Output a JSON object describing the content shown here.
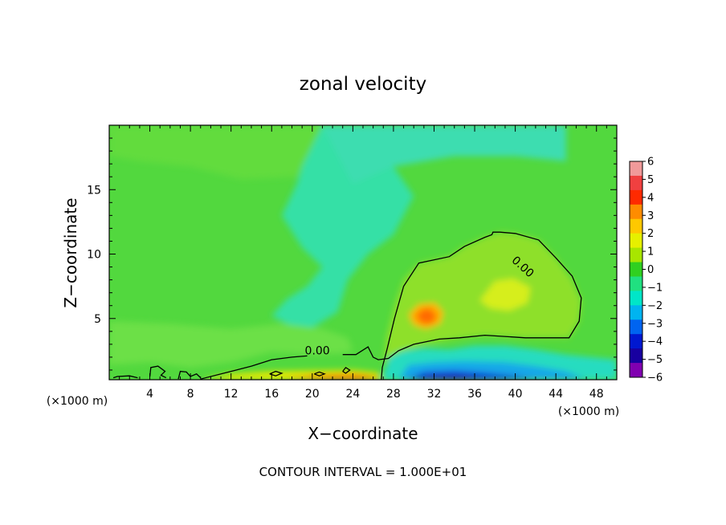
{
  "chart_data": {
    "type": "heatmap",
    "title": "zonal velocity",
    "xlabel": "X−coordinate",
    "ylabel": "Z−coordinate",
    "x_unit_left": "(×1000 m)",
    "x_unit_right": "(×1000 m)",
    "footer": "CONTOUR INTERVAL = 1.000E+01",
    "xlim": [
      0,
      50
    ],
    "ylim": [
      0.25,
      20
    ],
    "x_ticks": [
      4,
      8,
      12,
      16,
      20,
      24,
      28,
      32,
      36,
      40,
      44,
      48
    ],
    "y_ticks": [
      5,
      10,
      15
    ],
    "colorbar": {
      "levels": [
        6,
        5,
        4,
        3,
        2,
        1,
        0,
        -1,
        -2,
        -3,
        -4,
        -5,
        -6
      ],
      "colors": [
        "#f09a9a",
        "#f04040",
        "#ff2a00",
        "#ff8c00",
        "#ffc800",
        "#e6f000",
        "#a8e600",
        "#30d020",
        "#20e080",
        "#00e6c8",
        "#00b4f0",
        "#0064f0",
        "#0018d0",
        "#1800a0",
        "#8000b0"
      ]
    },
    "contour_labels": [
      {
        "text": "0.00",
        "x": 40.5,
        "y": 8.8,
        "rotate": 42
      },
      {
        "text": "0.00",
        "x": 20.5,
        "y": 2.2,
        "rotate": 0
      }
    ],
    "contour_value": "0.00",
    "background_color": "#52d83e",
    "regions": [
      {
        "name": "upper-cyan-band",
        "color": "#3cddb0",
        "points": [
          [
            21,
            20
          ],
          [
            45,
            20
          ],
          [
            45,
            17.2
          ],
          [
            40,
            17.6
          ],
          [
            34,
            17.6
          ],
          [
            28,
            16.8
          ],
          [
            24,
            15.4
          ],
          [
            22,
            16.5
          ]
        ]
      },
      {
        "name": "cyan-plume",
        "color": "#34e0a6",
        "points": [
          [
            21,
            20
          ],
          [
            24,
            15.4
          ],
          [
            28,
            16.8
          ],
          [
            30,
            14.5
          ],
          [
            28,
            11.5
          ],
          [
            25.5,
            10
          ],
          [
            23.5,
            8
          ],
          [
            22.5,
            5.5
          ],
          [
            20,
            4.3
          ],
          [
            18,
            4.4
          ],
          [
            16,
            5.2
          ],
          [
            17.5,
            6.5
          ],
          [
            19.5,
            7.5
          ],
          [
            21,
            9
          ],
          [
            19,
            10.5
          ],
          [
            17,
            13
          ],
          [
            18.5,
            15.5
          ],
          [
            19.5,
            18
          ]
        ]
      },
      {
        "name": "upper-light-band",
        "color": "#62dc3c",
        "points": [
          [
            0,
            20
          ],
          [
            21,
            20
          ],
          [
            18.5,
            16
          ],
          [
            13,
            15.8
          ],
          [
            8,
            16.8
          ],
          [
            3,
            17.2
          ],
          [
            0,
            17.6
          ]
        ]
      },
      {
        "name": "lower-light-band",
        "color": "#6ce046",
        "points": [
          [
            0,
            4.8
          ],
          [
            0,
            1.4
          ],
          [
            4,
            1.6
          ],
          [
            8,
            1.2
          ],
          [
            12,
            1.6
          ],
          [
            16,
            2.4
          ],
          [
            20,
            2.2
          ],
          [
            23,
            2.3
          ],
          [
            24,
            2.5
          ],
          [
            23.5,
            3.5
          ],
          [
            21,
            4.2
          ],
          [
            17,
            4.6
          ],
          [
            12,
            4.2
          ],
          [
            6,
            4.6
          ]
        ]
      },
      {
        "name": "positive-region",
        "color": "#8ee02c",
        "points": [
          [
            27,
            1.4
          ],
          [
            27.3,
            3.5
          ],
          [
            28.1,
            6
          ],
          [
            29,
            8
          ],
          [
            30.5,
            9.3
          ],
          [
            33.5,
            9.8
          ],
          [
            35,
            10.6
          ],
          [
            37,
            11.3
          ],
          [
            38.5,
            11.7
          ],
          [
            40,
            11.6
          ],
          [
            42.3,
            11.1
          ],
          [
            44,
            9.7
          ],
          [
            45.6,
            8
          ],
          [
            46.5,
            6.4
          ],
          [
            46.3,
            4.8
          ],
          [
            45.3,
            3.5
          ],
          [
            44,
            3.5
          ],
          [
            41,
            3.5
          ],
          [
            37,
            3.7
          ],
          [
            34,
            3.4
          ],
          [
            31,
            3.0
          ],
          [
            28.5,
            2.4
          ],
          [
            27.6,
            2.0
          ]
        ]
      },
      {
        "name": "yellow-core",
        "color": "#d6ee1c",
        "points": [
          [
            36.5,
            6.4
          ],
          [
            38,
            7.9
          ],
          [
            39.8,
            8.1
          ],
          [
            41.5,
            7.4
          ],
          [
            41.2,
            6.2
          ],
          [
            39.4,
            5.6
          ],
          [
            37.5,
            5.8
          ]
        ]
      },
      {
        "name": "orange-jet-outer",
        "color": "#ffb000",
        "points": [
          [
            29.5,
            5.3
          ],
          [
            30,
            4.5
          ],
          [
            31.2,
            4.2
          ],
          [
            32.6,
            4.6
          ],
          [
            32.9,
            5.5
          ],
          [
            32.1,
            6.2
          ],
          [
            30.5,
            6.1
          ]
        ]
      },
      {
        "name": "orange-jet-core",
        "color": "#ff6a00",
        "points": [
          [
            30.2,
            5.2
          ],
          [
            30.8,
            4.6
          ],
          [
            31.8,
            4.6
          ],
          [
            32.3,
            5.2
          ],
          [
            31.6,
            5.8
          ],
          [
            30.8,
            5.7
          ]
        ]
      },
      {
        "name": "negative-layer",
        "color": "#26dcc0",
        "points": [
          [
            26.8,
            0.25
          ],
          [
            27.6,
            2.0
          ],
          [
            29,
            2.5
          ],
          [
            31,
            2.7
          ],
          [
            33.5,
            2.6
          ],
          [
            36,
            2.9
          ],
          [
            39,
            2.9
          ],
          [
            42,
            2.6
          ],
          [
            45,
            2.2
          ],
          [
            50,
            1.8
          ],
          [
            50,
            0.25
          ]
        ]
      },
      {
        "name": "negative-layer-blue",
        "color": "#18a8e8",
        "points": [
          [
            28.5,
            0.25
          ],
          [
            29.5,
            1.4
          ],
          [
            32,
            1.6
          ],
          [
            35,
            1.7
          ],
          [
            39,
            1.6
          ],
          [
            42,
            1.3
          ],
          [
            45,
            0.9
          ],
          [
            47,
            0.25
          ]
        ]
      },
      {
        "name": "negative-layer-dark",
        "color": "#1040d8",
        "points": [
          [
            29.3,
            0.25
          ],
          [
            31,
            0.85
          ],
          [
            34,
            0.95
          ],
          [
            37,
            0.8
          ],
          [
            40,
            0.55
          ],
          [
            42,
            0.25
          ]
        ]
      },
      {
        "name": "negative-layer-core",
        "color": "#2000a0",
        "points": [
          [
            30,
            0.25
          ],
          [
            32,
            0.5
          ],
          [
            34.5,
            0.55
          ],
          [
            37,
            0.25
          ]
        ]
      },
      {
        "name": "surface-yellow",
        "color": "#e8e800",
        "points": [
          [
            9,
            0.25
          ],
          [
            12,
            0.7
          ],
          [
            16,
            0.9
          ],
          [
            20,
            0.95
          ],
          [
            24,
            1.0
          ],
          [
            26.5,
            0.8
          ],
          [
            26.8,
            0.25
          ]
        ]
      },
      {
        "name": "surface-orange",
        "color": "#ff8c00",
        "points": [
          [
            17,
            0.25
          ],
          [
            20,
            0.6
          ],
          [
            24,
            0.7
          ],
          [
            26.3,
            0.5
          ],
          [
            26.6,
            0.25
          ]
        ]
      },
      {
        "name": "surface-red",
        "color": "#ff2a00",
        "points": [
          [
            19,
            0.25
          ],
          [
            22,
            0.45
          ],
          [
            25,
            0.5
          ],
          [
            26.3,
            0.25
          ]
        ]
      }
    ],
    "contours": [
      {
        "name": "zero-contour-main",
        "points": [
          [
            26.8,
            0.25
          ],
          [
            26.9,
            1.2
          ],
          [
            27.4,
            2.7
          ],
          [
            28.1,
            5.0
          ],
          [
            29,
            7.5
          ],
          [
            30.5,
            9.3
          ],
          [
            33.5,
            9.8
          ],
          [
            35,
            10.6
          ],
          [
            37,
            11.3
          ],
          [
            37.7,
            11.5
          ],
          [
            37.8,
            11.7
          ],
          [
            38.5,
            11.7
          ],
          [
            40,
            11.6
          ],
          [
            42.3,
            11.1
          ],
          [
            44,
            9.7
          ],
          [
            45.6,
            8.3
          ],
          [
            46.5,
            6.6
          ],
          [
            46.3,
            4.8
          ],
          [
            45.3,
            3.5
          ],
          [
            44.5,
            3.5
          ],
          [
            41,
            3.5
          ],
          [
            37,
            3.7
          ],
          [
            34.5,
            3.5
          ],
          [
            32.5,
            3.4
          ],
          [
            30,
            3.0
          ],
          [
            28.5,
            2.5
          ],
          [
            27.5,
            1.9
          ],
          [
            26.5,
            1.8
          ],
          [
            26,
            2.0
          ],
          [
            25.5,
            2.8
          ],
          [
            24.3,
            2.2
          ],
          [
            23,
            2.2
          ]
        ]
      },
      {
        "name": "zero-contour-surface",
        "points": [
          [
            9,
            0.3
          ],
          [
            12,
            0.9
          ],
          [
            14,
            1.3
          ],
          [
            16,
            1.8
          ],
          [
            18,
            2.0
          ],
          [
            19.5,
            2.1
          ]
        ]
      },
      {
        "name": "zero-contour-near-ground",
        "points": [
          [
            0.4,
            0.4
          ],
          [
            0.8,
            0.5
          ],
          [
            2,
            0.55
          ],
          [
            2.8,
            0.4
          ]
        ]
      },
      {
        "name": "zero-contour-blob-a",
        "points": [
          [
            4,
            0.5
          ],
          [
            4.1,
            1.2
          ],
          [
            4.8,
            1.3
          ],
          [
            5.5,
            0.9
          ],
          [
            5.1,
            0.6
          ],
          [
            5.6,
            0.4
          ]
        ]
      },
      {
        "name": "zero-contour-blob-b",
        "points": [
          [
            6.8,
            0.3
          ],
          [
            7,
            0.9
          ],
          [
            7.6,
            0.85
          ],
          [
            8,
            0.5
          ],
          [
            8.6,
            0.7
          ],
          [
            9,
            0.4
          ]
        ]
      },
      {
        "name": "zero-contour-blob-c",
        "points": [
          [
            15.8,
            0.7
          ],
          [
            16.4,
            0.9
          ],
          [
            17,
            0.75
          ],
          [
            16.4,
            0.55
          ],
          [
            15.8,
            0.7
          ]
        ]
      },
      {
        "name": "zero-contour-blob-d",
        "points": [
          [
            20.2,
            0.7
          ],
          [
            20.7,
            0.85
          ],
          [
            21.2,
            0.7
          ],
          [
            20.7,
            0.55
          ],
          [
            20.2,
            0.7
          ]
        ]
      },
      {
        "name": "zero-contour-blob-e",
        "points": [
          [
            23,
            0.9
          ],
          [
            23.3,
            1.2
          ],
          [
            23.7,
            1.0
          ],
          [
            23.3,
            0.75
          ],
          [
            23,
            0.9
          ]
        ]
      }
    ]
  }
}
